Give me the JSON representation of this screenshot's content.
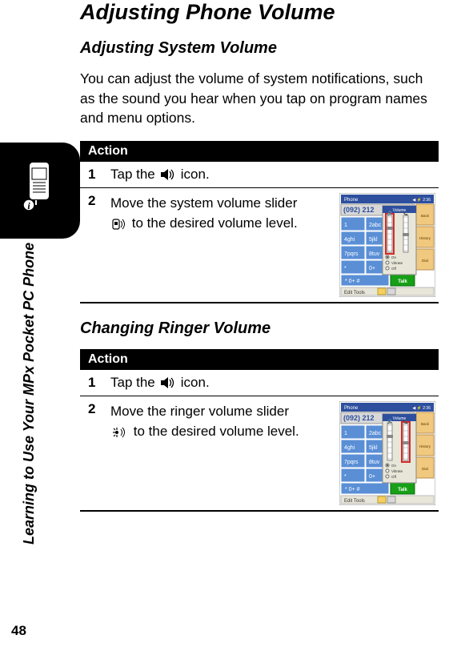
{
  "page_number": "48",
  "vertical_label": "Learning to Use Your MPx Pocket PC Phone",
  "main_title": "Adjusting Phone Volume",
  "section1": {
    "title": "Adjusting System Volume",
    "intro": "You can adjust the volume of system notifications, such as the sound you hear when you tap on program names and menu options.",
    "action_label": "Action",
    "step1_num": "1",
    "step1_pre": "Tap the",
    "step1_post": "icon.",
    "step2_num": "2",
    "step2_line1": "Move the system volume slider",
    "step2_line2": "to the desired volume level."
  },
  "section2": {
    "title": "Changing Ringer Volume",
    "action_label": "Action",
    "step1_num": "1",
    "step1_pre": "Tap the",
    "step1_post": "icon.",
    "step2_num": "2",
    "step2_line1": "Move the ringer volume slider",
    "step2_line2": "to the desired volume level."
  },
  "screenshot": {
    "titlebar": "Phone",
    "number": "(092) 212",
    "keys": [
      "1",
      "2abc",
      "3def",
      "4ghi",
      "5jkl",
      "6mno",
      "7pqrs",
      "8tuv",
      "9wxyz",
      "*",
      "0+",
      "#"
    ],
    "side_labels": [
      "On",
      "Vibrate",
      "Off"
    ],
    "volume_title": "Volume",
    "right_buttons": [
      "Back",
      "History",
      "Dial"
    ],
    "talk": "Talk",
    "bottom": [
      "Edit",
      "Tools"
    ],
    "colors": {
      "titlebar": "#2d4f9e",
      "key_bg": "#5a8fd6",
      "key_border": "#ffffff",
      "talk_bg": "#16a016",
      "panel_bg": "#e8e6d8",
      "back_btn": "#f0c87e",
      "slider_red": "#d62a2a",
      "display_bg": "#d8d8d8"
    }
  }
}
